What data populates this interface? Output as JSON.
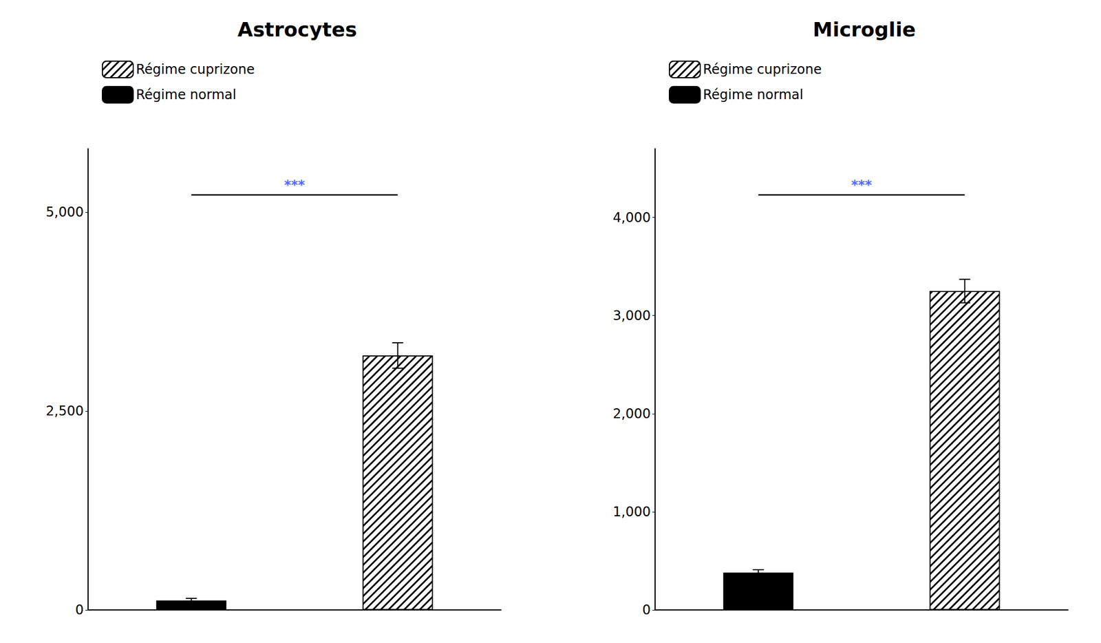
{
  "chart_data": [
    {
      "type": "bar",
      "title": "Astrocytes",
      "categories": [
        null,
        null
      ],
      "series": [
        {
          "name": "Régime normal",
          "color": "#000000",
          "values": [
            120,
            null
          ],
          "errors": [
            25,
            null
          ]
        },
        {
          "name": "Régime cuprizone",
          "color": "#ffffff",
          "values": [
            null,
            3200
          ],
          "errors": [
            null,
            160
          ]
        }
      ],
      "ylim": [
        0,
        5800
      ],
      "yticks": [
        0,
        2500,
        5000
      ],
      "grid": false,
      "legend": "upper left",
      "tick_labels": "y",
      "annotations": [
        {
          "text": "***",
          "color": "#5566ff"
        }
      ]
    },
    {
      "type": "bar",
      "title": "Microglie",
      "categories": [
        null,
        null
      ],
      "series": [
        {
          "name": "Régime normal",
          "color": "#000000",
          "values": [
            380,
            null
          ],
          "errors": [
            30,
            null
          ]
        },
        {
          "name": "Régime cuprizone",
          "color": "#ffffff",
          "values": [
            null,
            3250
          ],
          "errors": [
            null,
            120
          ]
        }
      ],
      "ylim": [
        0,
        4700
      ],
      "yticks": [
        0,
        1000,
        2000,
        3000,
        4000
      ],
      "grid": false,
      "legend": "upper left",
      "tick_labels": "y",
      "annotations": [
        {
          "text": "***",
          "color": "#5566ff"
        }
      ]
    }
  ]
}
